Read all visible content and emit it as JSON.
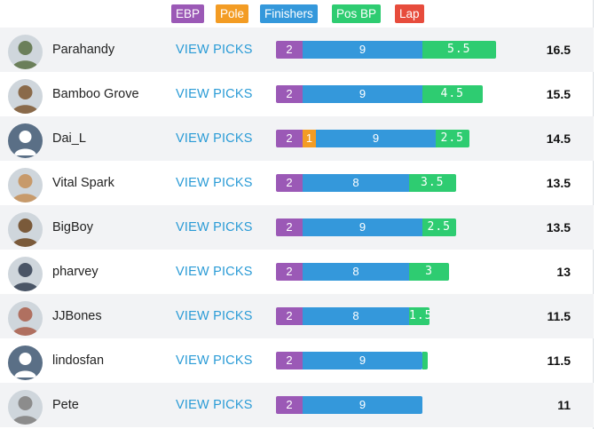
{
  "legend": [
    {
      "label": "EBP",
      "color": "#9b59b6"
    },
    {
      "label": "Pole",
      "color": "#f39c24"
    },
    {
      "label": "Finishers",
      "color": "#3498db"
    },
    {
      "label": "Pos BP",
      "color": "#2ecc71"
    },
    {
      "label": "Lap",
      "color": "#e74c3c"
    }
  ],
  "view_label": "VIEW PICKS",
  "players": [
    {
      "name": "Parahandy",
      "avatar": "photo-icon",
      "ebp": "2",
      "pole": "",
      "finishers": "9",
      "posbp": "5.5",
      "total": "16.5"
    },
    {
      "name": "Bamboo Grove",
      "avatar": "photo-icon",
      "ebp": "2",
      "pole": "",
      "finishers": "9",
      "posbp": "4.5",
      "total": "15.5"
    },
    {
      "name": "Dai_L",
      "avatar": "default-user-icon",
      "ebp": "2",
      "pole": "1",
      "finishers": "9",
      "posbp": "2.5",
      "total": "14.5"
    },
    {
      "name": "Vital Spark",
      "avatar": "photo-icon",
      "ebp": "2",
      "pole": "",
      "finishers": "8",
      "posbp": "3.5",
      "total": "13.5"
    },
    {
      "name": "BigBoy",
      "avatar": "photo-icon",
      "ebp": "2",
      "pole": "",
      "finishers": "9",
      "posbp": "2.5",
      "total": "13.5"
    },
    {
      "name": "pharvey",
      "avatar": "photo-icon",
      "ebp": "2",
      "pole": "",
      "finishers": "8",
      "posbp": "3",
      "total": "13"
    },
    {
      "name": "JJBones",
      "avatar": "photo-icon",
      "ebp": "2",
      "pole": "",
      "finishers": "8",
      "posbp": "1.5",
      "total": "11.5"
    },
    {
      "name": "lindosfan",
      "avatar": "default-user-icon",
      "ebp": "2",
      "pole": "",
      "finishers": "9",
      "posbp": "",
      "total": "11.5"
    },
    {
      "name": "Pete",
      "avatar": "photo-icon",
      "ebp": "2",
      "pole": "",
      "finishers": "9",
      "posbp": "",
      "total": "11"
    }
  ]
}
